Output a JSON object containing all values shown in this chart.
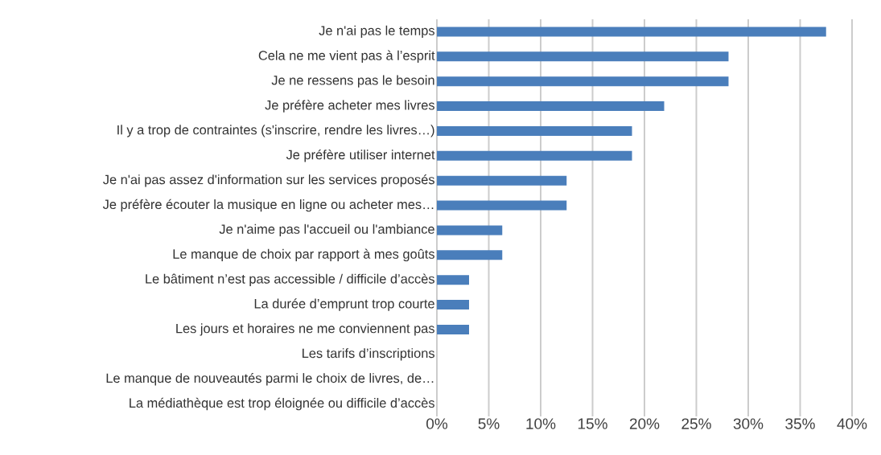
{
  "chart_data": {
    "type": "bar",
    "orientation": "horizontal",
    "categories": [
      "Je n'ai pas le temps",
      "Cela ne me vient pas à l’esprit",
      "Je ne ressens pas le besoin",
      "Je préfère acheter mes livres",
      "Il y a trop de contraintes (s'inscrire, rendre les livres…)",
      "Je préfère utiliser internet",
      "Je n'ai pas assez d'information sur les services proposés",
      "Je préfère écouter la musique en ligne ou acheter mes…",
      "Je n'aime pas l'accueil ou l'ambiance",
      "Le manque de choix par rapport à mes goûts",
      "Le bâtiment n’est pas accessible / difficile d’accès",
      "La durée d’emprunt trop courte",
      "Les jours et horaires ne me conviennent pas",
      "Les tarifs d’inscriptions",
      "Le manque de nouveautés parmi le choix de livres, de…",
      "La médiathèque est trop éloignée ou difficile d’accès"
    ],
    "values": [
      37.5,
      28.1,
      28.1,
      21.9,
      18.8,
      18.8,
      12.5,
      12.5,
      6.3,
      6.3,
      3.1,
      3.1,
      3.1,
      0,
      0,
      0
    ],
    "color": "#4a7ebb",
    "xlim": [
      0,
      40
    ],
    "xticks": [
      {
        "value": 0,
        "label": "0%"
      },
      {
        "value": 5,
        "label": "5%"
      },
      {
        "value": 10,
        "label": "10%"
      },
      {
        "value": 15,
        "label": "15%"
      },
      {
        "value": 20,
        "label": "20%"
      },
      {
        "value": 25,
        "label": "25%"
      },
      {
        "value": 30,
        "label": "30%"
      },
      {
        "value": 35,
        "label": "35%"
      },
      {
        "value": 40,
        "label": "40%"
      }
    ],
    "grid": "x"
  }
}
